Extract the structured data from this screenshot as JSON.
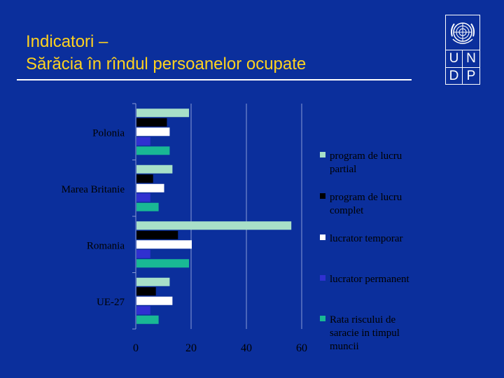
{
  "title": {
    "line1": "Indicatori –",
    "line2": "Sărăcia în rîndul persoanelor ocupate"
  },
  "logo": {
    "letters": [
      "U",
      "N",
      "D",
      "P"
    ],
    "emblem_icon": "un-emblem-icon"
  },
  "colors": {
    "background": "#0b2f9c",
    "title": "#ffd21f"
  },
  "chart_data": {
    "type": "bar",
    "orientation": "horizontal",
    "categories": [
      "Polonia",
      "Marea Britanie",
      "Romania",
      "UE-27"
    ],
    "series": [
      {
        "name": "program de lucru partial",
        "color": "#a8e0c8",
        "values": [
          19,
          13,
          56,
          12
        ]
      },
      {
        "name": "program de lucru complet",
        "color": "#000000",
        "values": [
          11,
          6,
          15,
          7
        ]
      },
      {
        "name": "lucrator temporar",
        "color": "#ffffff",
        "values": [
          12,
          10,
          20,
          13
        ]
      },
      {
        "name": "lucrator permanent",
        "color": "#3030d0",
        "values": [
          5,
          5,
          5,
          5
        ]
      },
      {
        "name": "Rata riscului de saracie in timpul muncii",
        "color": "#19b894",
        "values": [
          12,
          8,
          19,
          8
        ]
      }
    ],
    "xlim": [
      0,
      60
    ],
    "xticks": [
      0,
      20,
      40,
      60
    ],
    "grid": true,
    "legend_position": "right"
  }
}
